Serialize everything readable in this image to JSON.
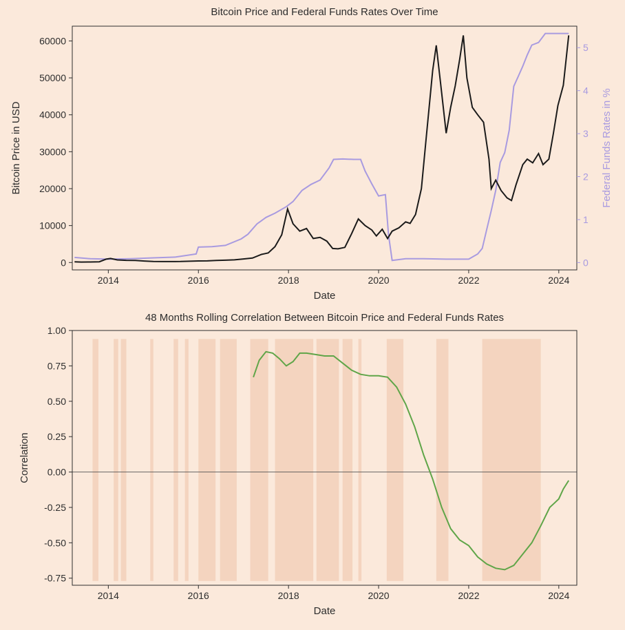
{
  "background_color": "#fbe9db",
  "top_chart": {
    "title": "Bitcoin Price and Federal Funds Rates Over Time",
    "title_fontsize": 15,
    "xlabel": "Date",
    "ylabel_left": "Bitcoin Price in USD",
    "ylabel_right": "Federal Funds Rates in %",
    "label_fontsize": 15,
    "tick_fontsize": 14,
    "type": "dual-axis-line",
    "x_ticks": [
      2014,
      2016,
      2018,
      2020,
      2022,
      2024
    ],
    "xlim": [
      2013.2,
      2024.4
    ],
    "y_left_ticks": [
      0,
      10000,
      20000,
      30000,
      40000,
      50000,
      60000
    ],
    "ylim_left": [
      -2000,
      64000
    ],
    "y_right_ticks": [
      0,
      1,
      2,
      3,
      4,
      5
    ],
    "ylim_right": [
      -0.17,
      5.5
    ],
    "border_color": "#2d2d2d",
    "btc": {
      "color": "#1a1a1a",
      "line_width": 2,
      "data": [
        [
          2013.25,
          180
        ],
        [
          2013.4,
          120
        ],
        [
          2013.6,
          140
        ],
        [
          2013.8,
          200
        ],
        [
          2013.95,
          900
        ],
        [
          2014.05,
          1100
        ],
        [
          2014.2,
          700
        ],
        [
          2014.4,
          600
        ],
        [
          2014.6,
          550
        ],
        [
          2014.8,
          400
        ],
        [
          2015.0,
          300
        ],
        [
          2015.2,
          250
        ],
        [
          2015.4,
          250
        ],
        [
          2015.6,
          280
        ],
        [
          2015.8,
          350
        ],
        [
          2016.0,
          420
        ],
        [
          2016.2,
          450
        ],
        [
          2016.4,
          550
        ],
        [
          2016.6,
          620
        ],
        [
          2016.8,
          720
        ],
        [
          2017.0,
          960
        ],
        [
          2017.2,
          1200
        ],
        [
          2017.4,
          2200
        ],
        [
          2017.55,
          2600
        ],
        [
          2017.7,
          4300
        ],
        [
          2017.85,
          7500
        ],
        [
          2017.98,
          14500
        ],
        [
          2018.1,
          10500
        ],
        [
          2018.25,
          8500
        ],
        [
          2018.4,
          9200
        ],
        [
          2018.55,
          6500
        ],
        [
          2018.7,
          6800
        ],
        [
          2018.85,
          5800
        ],
        [
          2018.98,
          3800
        ],
        [
          2019.1,
          3700
        ],
        [
          2019.25,
          4100
        ],
        [
          2019.4,
          7800
        ],
        [
          2019.55,
          11800
        ],
        [
          2019.7,
          10000
        ],
        [
          2019.85,
          8800
        ],
        [
          2019.95,
          7200
        ],
        [
          2020.08,
          9000
        ],
        [
          2020.2,
          6500
        ],
        [
          2020.3,
          8500
        ],
        [
          2020.45,
          9400
        ],
        [
          2020.6,
          11000
        ],
        [
          2020.7,
          10600
        ],
        [
          2020.82,
          13000
        ],
        [
          2020.95,
          20000
        ],
        [
          2021.05,
          33000
        ],
        [
          2021.2,
          52000
        ],
        [
          2021.28,
          58800
        ],
        [
          2021.38,
          48000
        ],
        [
          2021.5,
          35000
        ],
        [
          2021.6,
          42000
        ],
        [
          2021.7,
          47800
        ],
        [
          2021.8,
          55000
        ],
        [
          2021.88,
          61500
        ],
        [
          2021.96,
          50000
        ],
        [
          2022.08,
          42000
        ],
        [
          2022.2,
          40000
        ],
        [
          2022.33,
          38000
        ],
        [
          2022.45,
          28000
        ],
        [
          2022.5,
          20000
        ],
        [
          2022.6,
          22300
        ],
        [
          2022.72,
          19500
        ],
        [
          2022.85,
          17500
        ],
        [
          2022.95,
          16800
        ],
        [
          2023.05,
          21000
        ],
        [
          2023.2,
          26500
        ],
        [
          2023.3,
          28000
        ],
        [
          2023.42,
          27000
        ],
        [
          2023.55,
          29500
        ],
        [
          2023.65,
          26500
        ],
        [
          2023.78,
          28000
        ],
        [
          2023.88,
          35000
        ],
        [
          2023.98,
          42500
        ],
        [
          2024.1,
          48000
        ],
        [
          2024.22,
          61500
        ]
      ]
    },
    "fedfunds": {
      "color": "#a89ae0",
      "line_width": 2,
      "data": [
        [
          2013.25,
          0.12
        ],
        [
          2013.6,
          0.09
        ],
        [
          2014.0,
          0.08
        ],
        [
          2014.5,
          0.09
        ],
        [
          2015.0,
          0.11
        ],
        [
          2015.5,
          0.13
        ],
        [
          2015.95,
          0.2
        ],
        [
          2016.0,
          0.36
        ],
        [
          2016.3,
          0.37
        ],
        [
          2016.6,
          0.4
        ],
        [
          2016.95,
          0.55
        ],
        [
          2017.1,
          0.66
        ],
        [
          2017.3,
          0.9
        ],
        [
          2017.5,
          1.05
        ],
        [
          2017.7,
          1.15
        ],
        [
          2017.95,
          1.3
        ],
        [
          2018.1,
          1.42
        ],
        [
          2018.3,
          1.68
        ],
        [
          2018.5,
          1.82
        ],
        [
          2018.7,
          1.92
        ],
        [
          2018.9,
          2.2
        ],
        [
          2019.0,
          2.4
        ],
        [
          2019.2,
          2.41
        ],
        [
          2019.45,
          2.4
        ],
        [
          2019.6,
          2.4
        ],
        [
          2019.7,
          2.13
        ],
        [
          2019.85,
          1.83
        ],
        [
          2020.0,
          1.55
        ],
        [
          2020.15,
          1.58
        ],
        [
          2020.22,
          0.65
        ],
        [
          2020.3,
          0.05
        ],
        [
          2020.6,
          0.09
        ],
        [
          2021.0,
          0.09
        ],
        [
          2021.5,
          0.08
        ],
        [
          2022.0,
          0.08
        ],
        [
          2022.2,
          0.2
        ],
        [
          2022.3,
          0.33
        ],
        [
          2022.4,
          0.77
        ],
        [
          2022.5,
          1.21
        ],
        [
          2022.6,
          1.68
        ],
        [
          2022.7,
          2.33
        ],
        [
          2022.8,
          2.56
        ],
        [
          2022.9,
          3.08
        ],
        [
          2023.0,
          4.1
        ],
        [
          2023.1,
          4.33
        ],
        [
          2023.2,
          4.57
        ],
        [
          2023.3,
          4.83
        ],
        [
          2023.4,
          5.06
        ],
        [
          2023.55,
          5.12
        ],
        [
          2023.7,
          5.33
        ],
        [
          2023.85,
          5.33
        ],
        [
          2024.0,
          5.33
        ],
        [
          2024.22,
          5.33
        ]
      ]
    }
  },
  "bottom_chart": {
    "title": "48 Months Rolling Correlation Between Bitcoin Price and Federal Funds Rates",
    "title_fontsize": 15,
    "xlabel": "Date",
    "ylabel": "Correlation",
    "label_fontsize": 15,
    "tick_fontsize": 14,
    "type": "line-with-shaded-bands",
    "x_ticks": [
      2014,
      2016,
      2018,
      2020,
      2022,
      2024
    ],
    "xlim": [
      2013.2,
      2024.4
    ],
    "y_ticks": [
      -0.75,
      -0.5,
      -0.25,
      0.0,
      0.25,
      0.5,
      0.75,
      1.0
    ],
    "ylim": [
      -0.8,
      1.0
    ],
    "border_color": "#2d2d2d",
    "zero_line_color": "#555555",
    "shade_color": "#f0c9b0",
    "shade_opacity": 0.65,
    "shade_ylim": [
      -0.77,
      0.94
    ],
    "shade_bands": [
      [
        2013.65,
        2013.78
      ],
      [
        2014.12,
        2014.22
      ],
      [
        2014.28,
        2014.4
      ],
      [
        2014.93,
        2015.0
      ],
      [
        2015.45,
        2015.55
      ],
      [
        2015.7,
        2015.78
      ],
      [
        2016.0,
        2016.38
      ],
      [
        2016.48,
        2016.85
      ],
      [
        2017.15,
        2017.55
      ],
      [
        2017.7,
        2018.55
      ],
      [
        2018.62,
        2019.12
      ],
      [
        2019.2,
        2019.42
      ],
      [
        2019.55,
        2019.62
      ],
      [
        2020.18,
        2020.55
      ],
      [
        2021.28,
        2021.55
      ],
      [
        2022.3,
        2023.6
      ]
    ],
    "corr": {
      "color": "#5fa548",
      "line_width": 2,
      "data": [
        [
          2017.22,
          0.67
        ],
        [
          2017.35,
          0.79
        ],
        [
          2017.5,
          0.85
        ],
        [
          2017.65,
          0.84
        ],
        [
          2017.8,
          0.8
        ],
        [
          2017.95,
          0.75
        ],
        [
          2018.1,
          0.78
        ],
        [
          2018.25,
          0.84
        ],
        [
          2018.4,
          0.84
        ],
        [
          2018.6,
          0.83
        ],
        [
          2018.8,
          0.82
        ],
        [
          2019.0,
          0.82
        ],
        [
          2019.2,
          0.77
        ],
        [
          2019.4,
          0.72
        ],
        [
          2019.6,
          0.69
        ],
        [
          2019.8,
          0.68
        ],
        [
          2020.0,
          0.68
        ],
        [
          2020.2,
          0.67
        ],
        [
          2020.4,
          0.6
        ],
        [
          2020.6,
          0.48
        ],
        [
          2020.8,
          0.32
        ],
        [
          2021.0,
          0.12
        ],
        [
          2021.2,
          -0.05
        ],
        [
          2021.4,
          -0.25
        ],
        [
          2021.6,
          -0.4
        ],
        [
          2021.8,
          -0.48
        ],
        [
          2022.0,
          -0.52
        ],
        [
          2022.2,
          -0.6
        ],
        [
          2022.4,
          -0.65
        ],
        [
          2022.6,
          -0.68
        ],
        [
          2022.8,
          -0.69
        ],
        [
          2023.0,
          -0.66
        ],
        [
          2023.2,
          -0.58
        ],
        [
          2023.4,
          -0.5
        ],
        [
          2023.6,
          -0.38
        ],
        [
          2023.8,
          -0.25
        ],
        [
          2023.9,
          -0.22
        ],
        [
          2024.0,
          -0.19
        ],
        [
          2024.1,
          -0.12
        ],
        [
          2024.22,
          -0.06
        ]
      ]
    }
  }
}
